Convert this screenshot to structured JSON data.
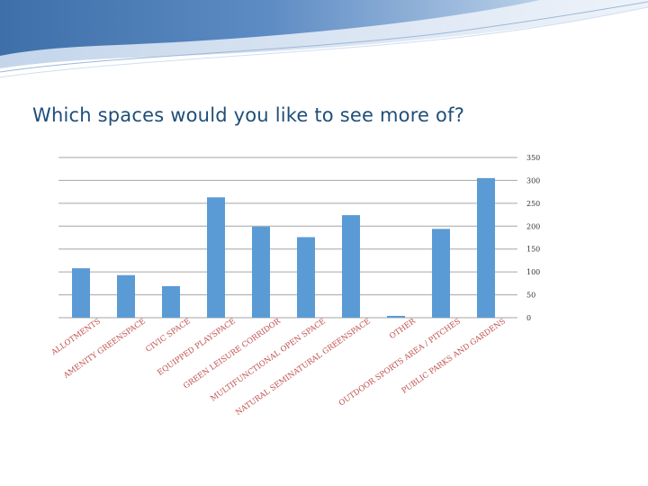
{
  "slide": {
    "title": "Which spaces would you like to see more of?"
  },
  "colors": {
    "bar": "#5b9bd5",
    "title": "#1f4e79",
    "category_label": "#c0504d",
    "grid": "#a6a6a6"
  },
  "chart_data": {
    "type": "bar",
    "title": "",
    "xlabel": "",
    "ylabel": "",
    "ylim": [
      0,
      350
    ],
    "yticks": [
      "0",
      "50",
      "100",
      "150",
      "200",
      "250",
      "300",
      "350"
    ],
    "grid": true,
    "y_axis_side": "right",
    "categories": [
      "ALLOTMENTS",
      "AMENITY GREENSPACE",
      "CIVIC SPACE",
      "EQUIPPED PLAYSPACE",
      "GREEN LEISURE CORRIDOR",
      "MULTIFUNCTIONAL OPEN SPACE",
      "NATURAL SEMINATURAL GREENSPACE",
      "OTHER",
      "OUTDOOR SPORTS AREA / PITCHES",
      "PUBLIC PARKS AND GARDENS"
    ],
    "values": [
      108,
      93,
      69,
      263,
      199,
      176,
      224,
      4,
      194,
      305
    ]
  }
}
